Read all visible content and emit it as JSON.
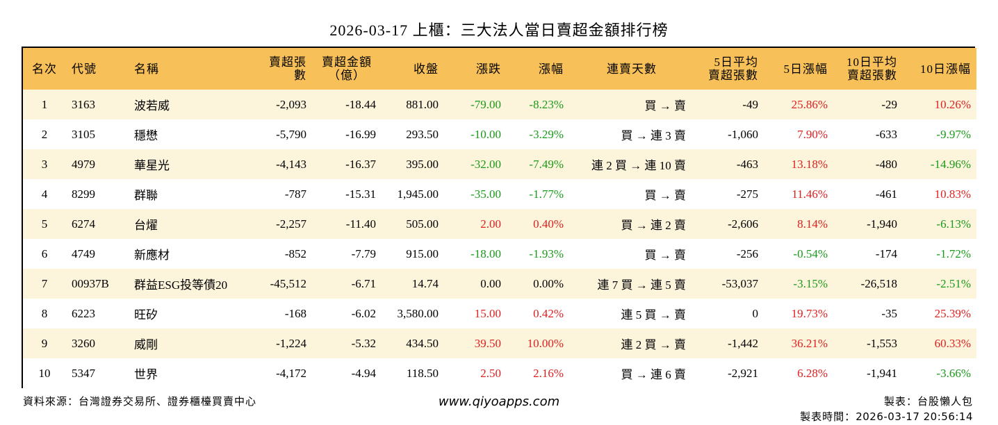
{
  "title": "2026-03-17 上櫃：三大法人當日賣超金額排行榜",
  "headers": {
    "rank": "名次",
    "code": "代號",
    "name": "名稱",
    "net_sell_lots": "賣超張數",
    "net_sell_amount_l1": "賣超金額",
    "net_sell_amount_l2": "（億）",
    "close": "收盤",
    "change": "漲跌",
    "change_pct": "漲幅",
    "consecutive_days": "連賣天數",
    "avg5_l1": "5日平均",
    "avg5_l2": "賣超張數",
    "pct5": "5日漲幅",
    "avg10_l1": "10日平均",
    "avg10_l2": "賣超張數",
    "pct10": "10日漲幅"
  },
  "rows": [
    {
      "rank": "1",
      "code": "3163",
      "name": "波若威",
      "lots": "-2,093",
      "amount": "-18.44",
      "close": "881.00",
      "change": "-79.00",
      "change_pct": "-8.23%",
      "streak": "買 → 賣",
      "avg5": "-49",
      "pct5": "25.86%",
      "avg10": "-29",
      "pct10": "10.26%"
    },
    {
      "rank": "2",
      "code": "3105",
      "name": "穩懋",
      "lots": "-5,790",
      "amount": "-16.99",
      "close": "293.50",
      "change": "-10.00",
      "change_pct": "-3.29%",
      "streak": "買 → 連 3 賣",
      "avg5": "-1,060",
      "pct5": "7.90%",
      "avg10": "-633",
      "pct10": "-9.97%"
    },
    {
      "rank": "3",
      "code": "4979",
      "name": "華星光",
      "lots": "-4,143",
      "amount": "-16.37",
      "close": "395.00",
      "change": "-32.00",
      "change_pct": "-7.49%",
      "streak": "連 2 買 → 連 10 賣",
      "avg5": "-463",
      "pct5": "13.18%",
      "avg10": "-480",
      "pct10": "-14.96%"
    },
    {
      "rank": "4",
      "code": "8299",
      "name": "群聯",
      "lots": "-787",
      "amount": "-15.31",
      "close": "1,945.00",
      "change": "-35.00",
      "change_pct": "-1.77%",
      "streak": "買 → 賣",
      "avg5": "-275",
      "pct5": "11.46%",
      "avg10": "-461",
      "pct10": "10.83%"
    },
    {
      "rank": "5",
      "code": "6274",
      "name": "台燿",
      "lots": "-2,257",
      "amount": "-11.40",
      "close": "505.00",
      "change": "2.00",
      "change_pct": "0.40%",
      "streak": "買 → 連 2 賣",
      "avg5": "-2,606",
      "pct5": "8.14%",
      "avg10": "-1,940",
      "pct10": "-6.13%"
    },
    {
      "rank": "6",
      "code": "4749",
      "name": "新應材",
      "lots": "-852",
      "amount": "-7.79",
      "close": "915.00",
      "change": "-18.00",
      "change_pct": "-1.93%",
      "streak": "買 → 賣",
      "avg5": "-256",
      "pct5": "-0.54%",
      "avg10": "-174",
      "pct10": "-1.72%"
    },
    {
      "rank": "7",
      "code": "00937B",
      "name": "群益ESG投等債20",
      "lots": "-45,512",
      "amount": "-6.71",
      "close": "14.74",
      "change": "0.00",
      "change_pct": "0.00%",
      "streak": "連 7 買 → 連 5 賣",
      "avg5": "-53,037",
      "pct5": "-3.15%",
      "avg10": "-26,518",
      "pct10": "-2.51%"
    },
    {
      "rank": "8",
      "code": "6223",
      "name": "旺矽",
      "lots": "-168",
      "amount": "-6.02",
      "close": "3,580.00",
      "change": "15.00",
      "change_pct": "0.42%",
      "streak": "連 5 買 → 賣",
      "avg5": "0",
      "pct5": "19.73%",
      "avg10": "-35",
      "pct10": "25.39%"
    },
    {
      "rank": "9",
      "code": "3260",
      "name": "威剛",
      "lots": "-1,224",
      "amount": "-5.32",
      "close": "434.50",
      "change": "39.50",
      "change_pct": "10.00%",
      "streak": "連 2 買 → 賣",
      "avg5": "-1,442",
      "pct5": "36.21%",
      "avg10": "-1,553",
      "pct10": "60.33%"
    },
    {
      "rank": "10",
      "code": "5347",
      "name": "世界",
      "lots": "-4,172",
      "amount": "-4.94",
      "close": "118.50",
      "change": "2.50",
      "change_pct": "2.16%",
      "streak": "買 → 連 6 賣",
      "avg5": "-2,921",
      "pct5": "6.28%",
      "avg10": "-1,941",
      "pct10": "-3.66%"
    }
  ],
  "colors": {
    "header_bg": "#f8c058",
    "row_alt_bg": "#fdf4dc",
    "up": "#e02020",
    "down": "#1a9a1a"
  },
  "footer": {
    "source": "資料來源：台灣證券交易所、證券櫃檯買賣中心",
    "website": "www.qiyoapps.com",
    "maker": "製表：台股懶人包",
    "time_label": "製表時間：",
    "time_value": "2026-03-17 20:56:14"
  }
}
